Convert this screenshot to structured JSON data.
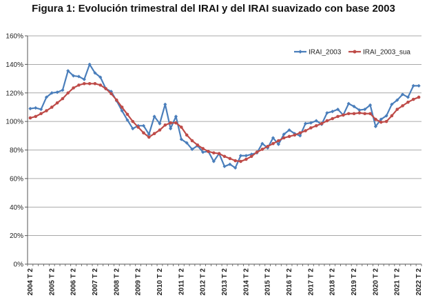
{
  "chart_data": {
    "type": "line",
    "title": "Figura 1: Evolución trimestral del IRAI y del IRAI suavizado con base 2003",
    "xlabel": "",
    "ylabel": "",
    "ylim": [
      0,
      160
    ],
    "y_ticks": [
      "0%",
      "20%",
      "40%",
      "60%",
      "80%",
      "100%",
      "120%",
      "140%",
      "160%"
    ],
    "y_tick_values": [
      0,
      20,
      40,
      60,
      80,
      100,
      120,
      140,
      160
    ],
    "x_tick_labels": [
      "2004 T 2",
      "2005 T 2",
      "2006 T 2",
      "2007 T 2",
      "2008 T 2",
      "2009 T 2",
      "2010 T 2",
      "2011 T 2",
      "2012 T 2",
      "2013 T 2",
      "2014 T 2",
      "2015 T 2",
      "2016 T 2",
      "2017 T 2",
      "2018 T 2",
      "2019 T 2",
      "2020 T 2",
      "2021 T 2",
      "2022 T 2"
    ],
    "x_tick_index": [
      0,
      4,
      8,
      12,
      16,
      20,
      24,
      28,
      32,
      36,
      40,
      44,
      48,
      52,
      56,
      60,
      64,
      68,
      72
    ],
    "grid": true,
    "legend_position": "top-right",
    "series": [
      {
        "name": "IRAI_2003",
        "color": "#4A7EBB",
        "marker": "diamond",
        "values": [
          109,
          109.5,
          108.5,
          117,
          120,
          120.5,
          122,
          135.5,
          132,
          131.5,
          129.5,
          140,
          134,
          131,
          123,
          121,
          114.5,
          107.5,
          101,
          95,
          97,
          97,
          91,
          103.5,
          98.5,
          112,
          95,
          103.5,
          87.5,
          85,
          80.5,
          83,
          78.5,
          79,
          72,
          77.5,
          68.5,
          70,
          67.5,
          76,
          76,
          77,
          78,
          84.5,
          81.5,
          88.5,
          84,
          91,
          94,
          91.5,
          90,
          98.5,
          99,
          100.5,
          98,
          106,
          107,
          108.5,
          104.5,
          112.5,
          110.5,
          108,
          108.5,
          111.5,
          96.5,
          101.5,
          104,
          112,
          115,
          119,
          117,
          125,
          125
        ]
      },
      {
        "name": "IRAI_2003_sua",
        "color": "#BE4B48",
        "marker": "circle",
        "values": [
          102.5,
          103.5,
          105.5,
          107.5,
          110,
          113,
          116,
          120,
          123.5,
          125.5,
          126.5,
          126.5,
          126.5,
          125.5,
          123,
          119.5,
          115,
          110,
          105,
          100,
          96,
          92,
          89,
          91.5,
          94,
          97.5,
          99,
          99,
          96,
          90.5,
          86.5,
          83.5,
          81,
          79,
          78,
          77.5,
          75.5,
          74,
          72.5,
          72,
          73.5,
          75.5,
          78.5,
          80.5,
          82.5,
          84.5,
          86.5,
          88.5,
          89.5,
          90.5,
          92,
          93.5,
          95.5,
          97,
          98.5,
          100.5,
          102,
          103.5,
          104.5,
          105.5,
          105.5,
          106,
          105.5,
          105.5,
          101.5,
          99.5,
          100,
          104,
          108.5,
          111,
          113.5,
          115.5,
          117
        ]
      }
    ]
  }
}
